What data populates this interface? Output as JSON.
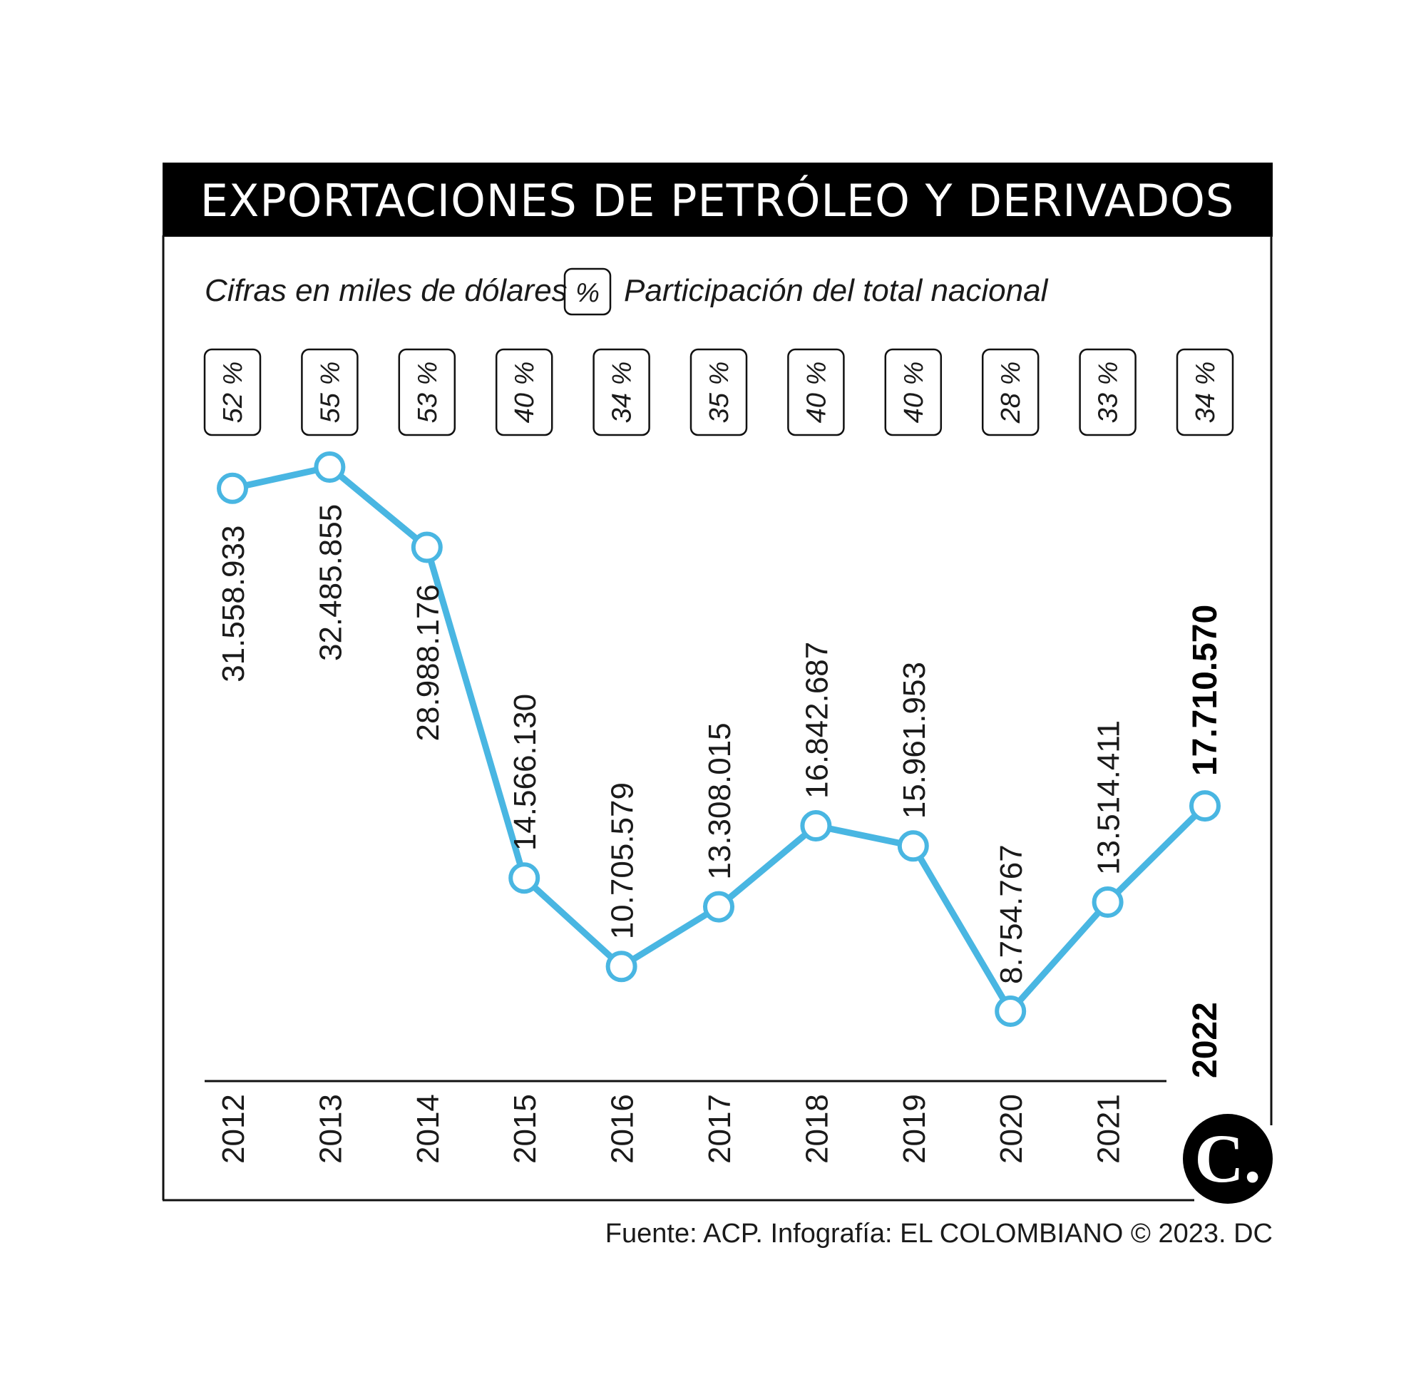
{
  "title": "EXPORTACIONES DE PETRÓLEO Y DERIVADOS",
  "legend": {
    "units_label": "Cifras en miles de dólares",
    "pct_symbol": "%",
    "pct_label": "Participación del total nacional"
  },
  "source": "Fuente: ACP. Infografía: EL COLOMBIANO © 2023. DC",
  "logo_letter": "C.",
  "colors": {
    "line": "#49b6e2",
    "header_bg": "#000000",
    "text": "#1a1a1a"
  },
  "chart_data": {
    "type": "line",
    "title": "EXPORTACIONES DE PETRÓLEO Y DERIVADOS",
    "categories": [
      "2012",
      "2013",
      "2014",
      "2015",
      "2016",
      "2017",
      "2018",
      "2019",
      "2020",
      "2021",
      "2022"
    ],
    "values": [
      31558933,
      32485855,
      28988176,
      14566130,
      10705579,
      13308015,
      16842687,
      15961953,
      8754767,
      13514411,
      17710570
    ],
    "value_labels": [
      "31.558.933",
      "32.485.855",
      "28.988.176",
      "14.566.130",
      "10.705.579",
      "13.308.015",
      "16.842.687",
      "15.961.953",
      "8.754.767",
      "13.514.411",
      "17.710.570"
    ],
    "share_labels": [
      "52 %",
      "55 %",
      "53 %",
      "40 %",
      "34 %",
      "35 %",
      "40 %",
      "40 %",
      "28 %",
      "33 %",
      "34 %"
    ],
    "highlight": "2022",
    "grid": false
  }
}
